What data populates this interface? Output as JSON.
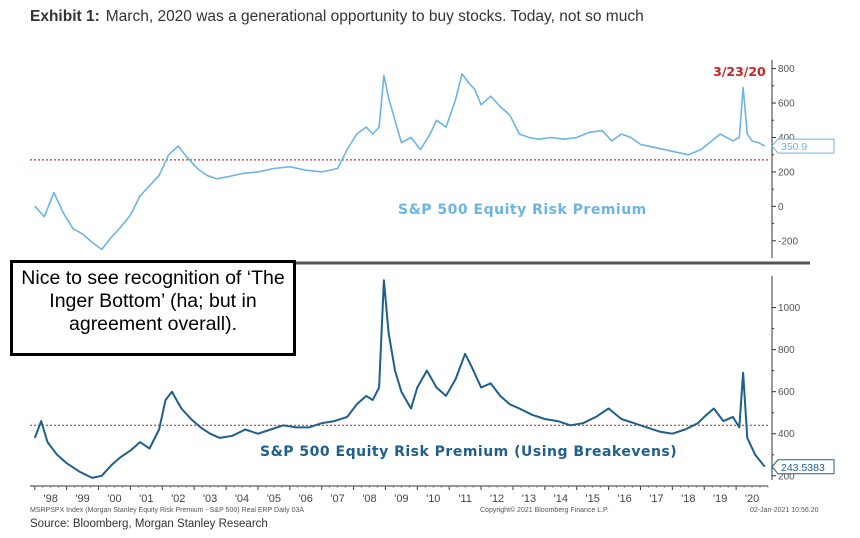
{
  "exhibit": {
    "label": "Exhibit 1:",
    "title": "March, 2020 was a generational opportunity to buy stocks. Today, not so much"
  },
  "callout": {
    "text": "Nice to see recognition of ‘The Inger Bottom’ (ha; but in agreement overall)."
  },
  "footer": {
    "index_note": "MSRPSPX Index (Morgan Stanley Equity Risk Premium - S&P 500) Real ERP Daily 03A",
    "copyright": "Copyright© 2021 Bloomberg Finance L.P.",
    "timestamp": "02-Jan-2021 10:56:20",
    "source": "Source: Bloomberg, Morgan Stanley Research"
  },
  "colors": {
    "top_series": "#6cb4e6",
    "bottom_series": "#1f5f8b",
    "reference_line": "#cc3333",
    "annotation": "#cc2222"
  },
  "chart_data": [
    {
      "type": "line",
      "title": "S&P 500 Equity Risk Premium",
      "ylim": [
        -300,
        850
      ],
      "yticks": [
        -200,
        0,
        200,
        400,
        600,
        800
      ],
      "reference_line": 270,
      "last_value_label": "350.9",
      "annotation": {
        "text": "3/23/20",
        "x": 2020.22
      },
      "x": [
        1998.0,
        1998.3,
        1998.6,
        1998.9,
        1999.2,
        1999.5,
        1999.8,
        2000.1,
        2000.4,
        2000.7,
        2001.0,
        2001.3,
        2001.6,
        2001.9,
        2002.2,
        2002.5,
        2002.8,
        2003.1,
        2003.4,
        2003.7,
        2004.0,
        2004.5,
        2005.0,
        2005.5,
        2006.0,
        2006.5,
        2007.0,
        2007.5,
        2007.8,
        2008.1,
        2008.4,
        2008.6,
        2008.8,
        2008.95,
        2009.1,
        2009.3,
        2009.5,
        2009.8,
        2010.1,
        2010.4,
        2010.6,
        2010.9,
        2011.2,
        2011.4,
        2011.6,
        2011.8,
        2012.0,
        2012.3,
        2012.6,
        2012.9,
        2013.2,
        2013.5,
        2013.8,
        2014.2,
        2014.6,
        2015.0,
        2015.4,
        2015.8,
        2016.1,
        2016.4,
        2016.7,
        2017.0,
        2017.5,
        2018.0,
        2018.5,
        2018.9,
        2019.1,
        2019.5,
        2019.9,
        2020.1,
        2020.22,
        2020.35,
        2020.5,
        2020.7,
        2020.9
      ],
      "y": [
        0,
        -60,
        80,
        -40,
        -130,
        -160,
        -210,
        -250,
        -180,
        -120,
        -50,
        60,
        120,
        180,
        300,
        350,
        280,
        220,
        180,
        160,
        170,
        190,
        200,
        220,
        230,
        210,
        200,
        220,
        330,
        420,
        460,
        420,
        460,
        760,
        630,
        500,
        370,
        400,
        330,
        420,
        500,
        460,
        620,
        770,
        720,
        680,
        590,
        640,
        580,
        530,
        420,
        400,
        390,
        400,
        390,
        400,
        430,
        440,
        380,
        420,
        400,
        360,
        340,
        320,
        300,
        330,
        360,
        420,
        380,
        400,
        690,
        420,
        380,
        370,
        350
      ]
    },
    {
      "type": "line",
      "title": "S&P 500 Equity Risk Premium (Using Breakevens)",
      "ylim": [
        180,
        1150
      ],
      "yticks": [
        200,
        400,
        600,
        800,
        1000
      ],
      "reference_line": 440,
      "last_value_label": "243.5383",
      "x": [
        1998.0,
        1998.2,
        1998.4,
        1998.7,
        1999.0,
        1999.4,
        1999.8,
        2000.1,
        2000.4,
        2000.7,
        2001.0,
        2001.3,
        2001.6,
        2001.9,
        2002.1,
        2002.3,
        2002.6,
        2002.9,
        2003.2,
        2003.5,
        2003.8,
        2004.2,
        2004.6,
        2005.0,
        2005.4,
        2005.8,
        2006.2,
        2006.6,
        2007.0,
        2007.4,
        2007.8,
        2008.1,
        2008.4,
        2008.6,
        2008.8,
        2008.95,
        2009.1,
        2009.3,
        2009.5,
        2009.8,
        2010.0,
        2010.3,
        2010.6,
        2010.9,
        2011.2,
        2011.5,
        2011.7,
        2012.0,
        2012.3,
        2012.6,
        2012.9,
        2013.2,
        2013.6,
        2014.0,
        2014.4,
        2014.8,
        2015.2,
        2015.6,
        2016.0,
        2016.4,
        2016.8,
        2017.2,
        2017.6,
        2018.0,
        2018.4,
        2018.8,
        2019.0,
        2019.3,
        2019.6,
        2019.9,
        2020.1,
        2020.22,
        2020.35,
        2020.6,
        2020.9
      ],
      "y": [
        380,
        460,
        360,
        300,
        260,
        220,
        190,
        200,
        250,
        290,
        320,
        360,
        330,
        420,
        560,
        600,
        520,
        470,
        430,
        400,
        380,
        390,
        420,
        400,
        420,
        440,
        430,
        430,
        450,
        460,
        480,
        540,
        580,
        560,
        620,
        1130,
        880,
        700,
        600,
        520,
        620,
        700,
        620,
        580,
        660,
        780,
        720,
        620,
        640,
        580,
        540,
        520,
        490,
        470,
        460,
        440,
        450,
        480,
        520,
        470,
        450,
        430,
        410,
        400,
        420,
        450,
        480,
        520,
        460,
        480,
        430,
        690,
        380,
        300,
        243
      ]
    }
  ],
  "x_axis": {
    "domain": [
      1997.85,
      2021.0
    ],
    "tick_labels": [
      "'98",
      "'99",
      "'00",
      "'01",
      "'02",
      "'03",
      "'04",
      "'05",
      "'06",
      "'07",
      "'08",
      "'09",
      "'10",
      "'11",
      "'12",
      "'13",
      "'14",
      "'15",
      "'16",
      "'17",
      "'18",
      "'19",
      "'20"
    ]
  }
}
